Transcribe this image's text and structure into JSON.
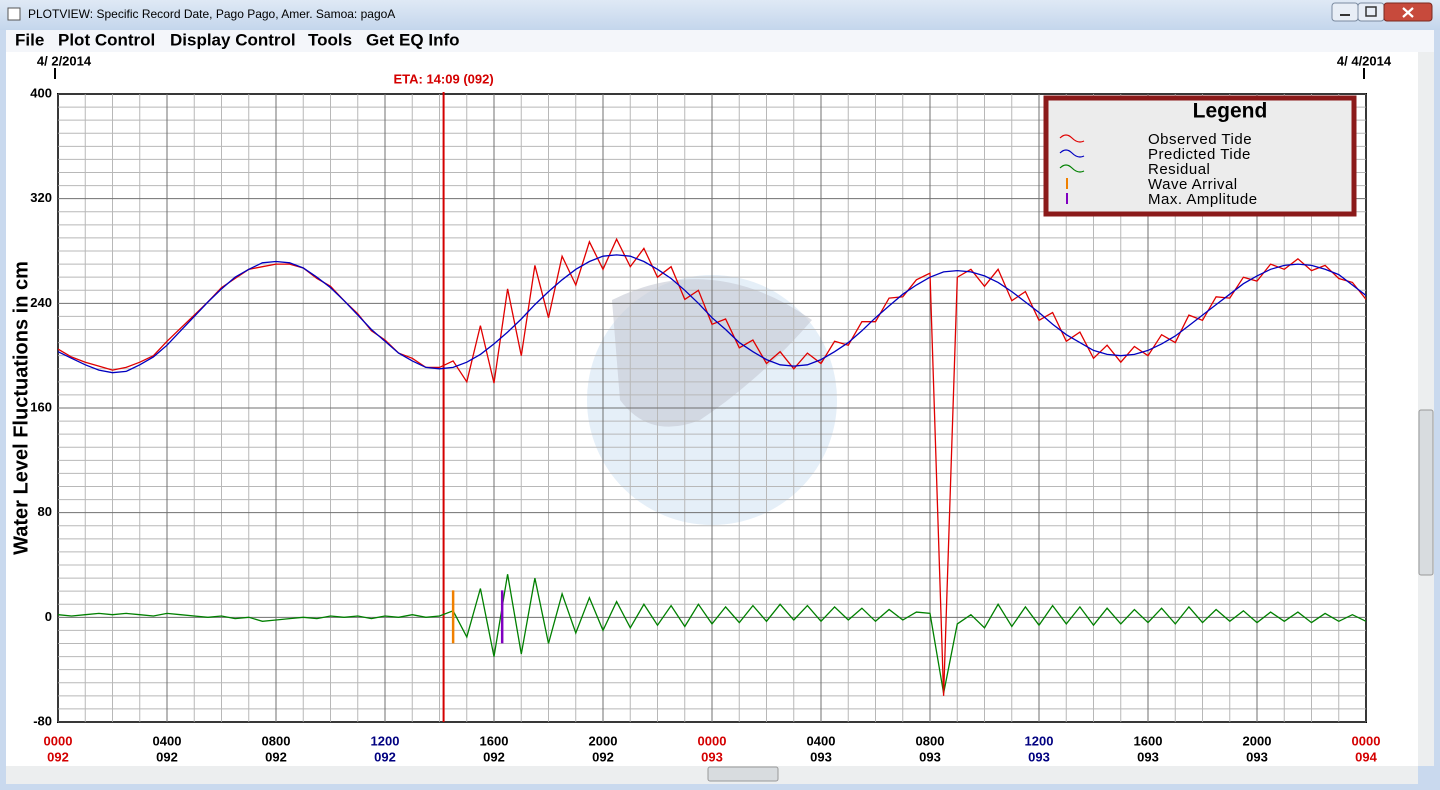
{
  "window": {
    "title": "PLOTVIEW: Specific Record Date, Pago Pago, Amer. Samoa: pagoA"
  },
  "menu": [
    "File",
    "Plot Control",
    "Display Control",
    "Tools",
    "Get EQ Info"
  ],
  "chart_data": {
    "type": "line",
    "y_label": "Water Level Fluctuations in cm",
    "legend_title": "Legend",
    "legend": "upper right",
    "grid": true,
    "start_date": "4/ 2/2014",
    "end_date": "4/ 4/2014",
    "xlim": [
      0,
      48
    ],
    "ylim": [
      -80,
      400
    ],
    "yticks": [
      400,
      320,
      240,
      160,
      80,
      0,
      -80
    ],
    "xticks": [
      {
        "value": 0,
        "label": "0000"
      },
      {
        "value": 4,
        "label": "0400"
      },
      {
        "value": 8,
        "label": "0800"
      },
      {
        "value": 12,
        "label": "1200"
      },
      {
        "value": 16,
        "label": "1600"
      },
      {
        "value": 20,
        "label": "2000"
      },
      {
        "value": 24,
        "label": "0000"
      },
      {
        "value": 28,
        "label": "0400"
      },
      {
        "value": 32,
        "label": "0800"
      },
      {
        "value": 36,
        "label": "1200"
      },
      {
        "value": 40,
        "label": "1600"
      },
      {
        "value": 44,
        "label": "2000"
      },
      {
        "value": 48,
        "label": "0000"
      }
    ],
    "xtick_days": [
      "092",
      "092",
      "092",
      "092",
      "092",
      "092",
      "093",
      "093",
      "093",
      "093",
      "093",
      "093",
      "094"
    ],
    "xtick_colors": [
      "#d40000",
      "#000000",
      "#000000",
      "#000080",
      "#000000",
      "#000000",
      "#d40000",
      "#000000",
      "#000000",
      "#000080",
      "#000000",
      "#000000",
      "#d40000"
    ],
    "eta": {
      "label": "ETA: 14:09 (092)",
      "x": 14.15,
      "color": "#d40000"
    },
    "markers": [
      {
        "name": "Wave Arrival",
        "color": "#f08000",
        "x": 14.5
      },
      {
        "name": "Max. Amplitude",
        "color": "#8000c0",
        "x": 16.3
      }
    ],
    "x": [
      0,
      0.5,
      1,
      1.5,
      2,
      2.5,
      3,
      3.5,
      4,
      4.5,
      5,
      5.5,
      6,
      6.5,
      7,
      7.5,
      8,
      8.5,
      9,
      9.5,
      10,
      10.5,
      11,
      11.5,
      12,
      12.5,
      13,
      13.5,
      14,
      14.5,
      15,
      15.5,
      16,
      16.5,
      17,
      17.5,
      18,
      18.5,
      19,
      19.5,
      20,
      20.5,
      21,
      21.5,
      22,
      22.5,
      23,
      23.5,
      24,
      24.5,
      25,
      25.5,
      26,
      26.5,
      27,
      27.5,
      28,
      28.5,
      29,
      29.5,
      30,
      30.5,
      31,
      31.5,
      32,
      32.5,
      33,
      33.5,
      34,
      34.5,
      35,
      35.5,
      36,
      36.5,
      37,
      37.5,
      38,
      38.5,
      39,
      39.5,
      40,
      40.5,
      41,
      41.5,
      42,
      42.5,
      43,
      43.5,
      44,
      44.5,
      45,
      45.5,
      46,
      46.5,
      47,
      47.5,
      48
    ],
    "series": [
      {
        "name": "Observed Tide",
        "color": "#e00000",
        "values": [
          205,
          199,
          195,
          192,
          189,
          191,
          195,
          200,
          211,
          221,
          231,
          241,
          252,
          259,
          266,
          268,
          270,
          270,
          267,
          259,
          253,
          242,
          232,
          219,
          212,
          202,
          198,
          191,
          191,
          196,
          180,
          223,
          179,
          251,
          200,
          269,
          229,
          276,
          254,
          287,
          266,
          289,
          268,
          282,
          260,
          268,
          243,
          250,
          224,
          228,
          206,
          212,
          194,
          203,
          190,
          202,
          194,
          211,
          208,
          226,
          226,
          244,
          245,
          258,
          263,
          -60,
          260,
          266,
          253,
          266,
          242,
          249,
          227,
          233,
          211,
          218,
          198,
          208,
          195,
          207,
          200,
          216,
          210,
          231,
          227,
          245,
          244,
          260,
          257,
          270,
          266,
          274,
          265,
          269,
          259,
          256,
          243
        ]
      },
      {
        "name": "Predicted Tide",
        "color": "#0000c0",
        "values": [
          203,
          198,
          193,
          189,
          187,
          188,
          193,
          199,
          208,
          219,
          230,
          241,
          251,
          260,
          266,
          271,
          272,
          271,
          267,
          260,
          252,
          242,
          231,
          220,
          211,
          202,
          196,
          191,
          190,
          191,
          195,
          201,
          209,
          218,
          228,
          239,
          249,
          258,
          266,
          272,
          276,
          277,
          276,
          272,
          266,
          259,
          250,
          240,
          229,
          220,
          210,
          203,
          197,
          193,
          192,
          193,
          197,
          203,
          210,
          219,
          229,
          238,
          247,
          254,
          260,
          264,
          265,
          264,
          261,
          256,
          249,
          241,
          233,
          224,
          216,
          210,
          204,
          201,
          200,
          201,
          204,
          209,
          215,
          223,
          231,
          239,
          247,
          255,
          261,
          266,
          269,
          270,
          269,
          266,
          262,
          254,
          246
        ]
      },
      {
        "name": "Residual",
        "color": "#008000",
        "values": [
          2,
          1,
          2,
          3,
          2,
          3,
          2,
          1,
          3,
          2,
          1,
          0,
          1,
          -1,
          0,
          -3,
          -2,
          -1,
          0,
          -1,
          1,
          0,
          1,
          -1,
          1,
          0,
          2,
          0,
          1,
          5,
          -15,
          22,
          -30,
          33,
          -28,
          30,
          -20,
          18,
          -12,
          15,
          -10,
          12,
          -8,
          10,
          -6,
          9,
          -7,
          10,
          -5,
          8,
          -4,
          9,
          -3,
          10,
          -2,
          9,
          -3,
          8,
          -2,
          7,
          -3,
          6,
          -2,
          4,
          3,
          -58,
          -5,
          2,
          -8,
          10,
          -7,
          8,
          -6,
          9,
          -5,
          8,
          -6,
          7,
          -5,
          6,
          -4,
          7,
          -5,
          8,
          -4,
          6,
          -3,
          5,
          -4,
          4,
          -3,
          4,
          -4,
          3,
          -3,
          2,
          -3
        ]
      }
    ]
  }
}
